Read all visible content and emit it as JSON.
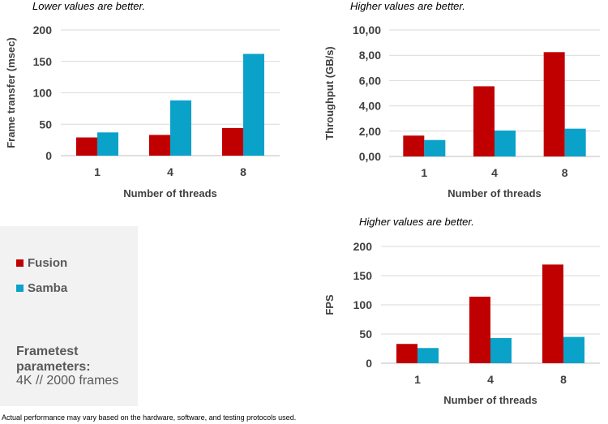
{
  "colors": {
    "fusion": "#c00000",
    "samba": "#0aa2c9",
    "grid": "#d9d9d9",
    "axis": "#bfbfbf"
  },
  "legend": {
    "fusion_label": "Fusion",
    "samba_label": "Samba",
    "params_title": "Frametest parameters:",
    "params_value": "4K // 2000 frames"
  },
  "disclaimer": "Actual performance may vary based on the hardware, software, and testing protocols used.",
  "chart_data": [
    {
      "type": "bar",
      "note": "Lower values are better.",
      "categories": [
        "1",
        "4",
        "8"
      ],
      "series": [
        {
          "name": "Fusion",
          "values": [
            29,
            33,
            44
          ]
        },
        {
          "name": "Samba",
          "values": [
            37,
            88,
            162
          ]
        }
      ],
      "xlabel": "Number of threads",
      "ylabel": "Frame transfer (msec)",
      "ylim": [
        0,
        200
      ],
      "yticks": [
        "0",
        "50",
        "100",
        "150",
        "200"
      ],
      "grid": true
    },
    {
      "type": "bar",
      "note": "Higher values are better.",
      "categories": [
        "1",
        "4",
        "8"
      ],
      "series": [
        {
          "name": "Fusion",
          "values": [
            1.65,
            5.55,
            8.25
          ]
        },
        {
          "name": "Samba",
          "values": [
            1.3,
            2.05,
            2.2
          ]
        }
      ],
      "xlabel": "Number of threads",
      "ylabel": "Throughput (GB/s)",
      "ylim": [
        0,
        10
      ],
      "yticks": [
        "0,00",
        "2,00",
        "4,00",
        "6,00",
        "8,00",
        "10,00"
      ],
      "grid": true
    },
    {
      "type": "bar",
      "note": "Higher values are better.",
      "categories": [
        "1",
        "4",
        "8"
      ],
      "series": [
        {
          "name": "Fusion",
          "values": [
            33,
            114,
            169
          ]
        },
        {
          "name": "Samba",
          "values": [
            26,
            43,
            45
          ]
        }
      ],
      "xlabel": "Number of threads",
      "ylabel": "FPS",
      "ylim": [
        0,
        200
      ],
      "yticks": [
        "0",
        "50",
        "100",
        "150",
        "200"
      ],
      "grid": true
    }
  ]
}
